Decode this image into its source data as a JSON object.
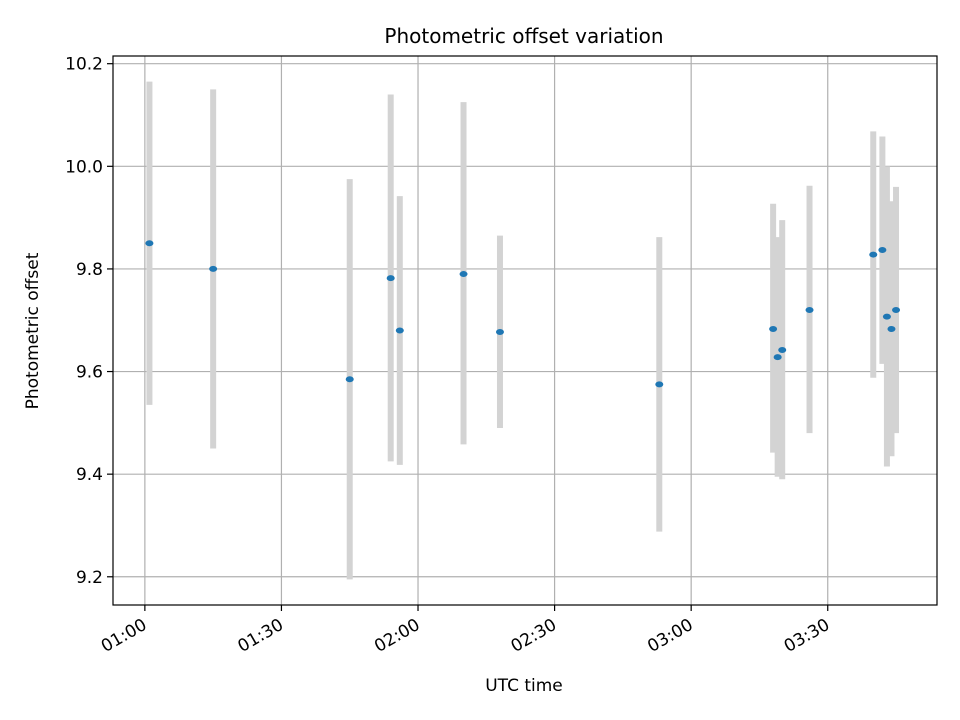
{
  "chart_data": {
    "type": "scatter",
    "title": "Photometric offset variation",
    "xlabel": "UTC time",
    "ylabel": "Photometric offset",
    "x_ticks": [
      "01:00",
      "01:30",
      "02:00",
      "02:30",
      "03:00",
      "03:30"
    ],
    "y_ticks": [
      "9.2",
      "9.4",
      "9.6",
      "9.8",
      "10.0",
      "10.2"
    ],
    "grid": true,
    "colors": {
      "marker": "#1f77b4",
      "errorbar": "#d3d3d3",
      "grid": "#b0b0b0",
      "axes": "#000000"
    },
    "points": [
      {
        "x": "01:01",
        "y": 9.85,
        "ylow": 9.535,
        "yhigh": 10.165
      },
      {
        "x": "01:15",
        "y": 9.8,
        "ylow": 9.45,
        "yhigh": 10.15
      },
      {
        "x": "01:45",
        "y": 9.585,
        "ylow": 9.195,
        "yhigh": 9.975
      },
      {
        "x": "01:54",
        "y": 9.782,
        "ylow": 9.425,
        "yhigh": 10.14
      },
      {
        "x": "01:56",
        "y": 9.68,
        "ylow": 9.418,
        "yhigh": 9.942
      },
      {
        "x": "02:10",
        "y": 9.79,
        "ylow": 9.458,
        "yhigh": 10.125
      },
      {
        "x": "02:18",
        "y": 9.677,
        "ylow": 9.49,
        "yhigh": 9.865
      },
      {
        "x": "02:53",
        "y": 9.575,
        "ylow": 9.288,
        "yhigh": 9.862
      },
      {
        "x": "03:18",
        "y": 9.683,
        "ylow": 9.442,
        "yhigh": 9.927
      },
      {
        "x": "03:19",
        "y": 9.628,
        "ylow": 9.395,
        "yhigh": 9.862
      },
      {
        "x": "03:20",
        "y": 9.642,
        "ylow": 9.39,
        "yhigh": 9.895
      },
      {
        "x": "03:26",
        "y": 9.72,
        "ylow": 9.48,
        "yhigh": 9.962
      },
      {
        "x": "03:40",
        "y": 9.828,
        "ylow": 9.588,
        "yhigh": 10.068
      },
      {
        "x": "03:42",
        "y": 9.837,
        "ylow": 9.615,
        "yhigh": 10.058
      },
      {
        "x": "03:43",
        "y": 9.707,
        "ylow": 9.415,
        "yhigh": 10.0
      },
      {
        "x": "03:44",
        "y": 9.683,
        "ylow": 9.435,
        "yhigh": 9.932
      },
      {
        "x": "03:45",
        "y": 9.72,
        "ylow": 9.48,
        "yhigh": 9.96
      }
    ],
    "xlim": [
      "00:53",
      "03:54"
    ],
    "ylim": [
      9.145,
      10.215
    ]
  }
}
